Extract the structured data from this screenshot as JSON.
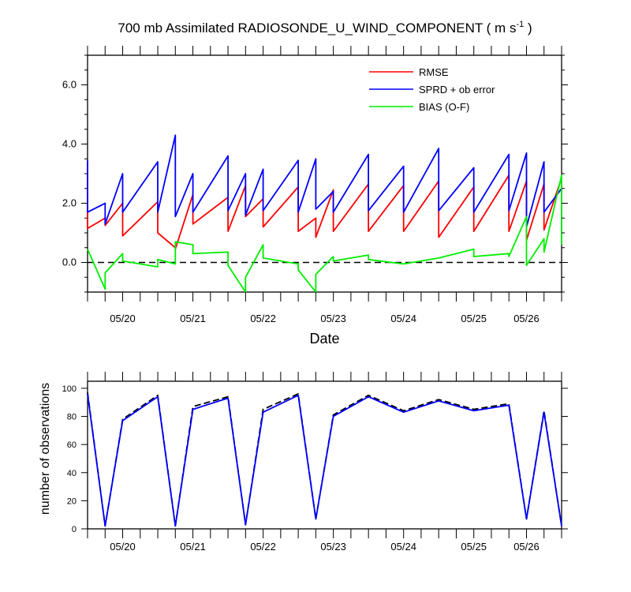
{
  "chart_data": [
    {
      "type": "line",
      "title": "700 mb Assimilated RADIOSONDE_U_WIND_COMPONENT ( m s",
      "title_superscript": "-1",
      "title_suffix": " )",
      "xlabel": "Date",
      "ylabel": "",
      "xlim": [
        0,
        6.5
      ],
      "ylim": [
        -1,
        7
      ],
      "yticks": [
        0.0,
        2.0,
        4.0,
        6.0
      ],
      "ytick_labels": [
        "0.0",
        "2.0",
        "4.0",
        "6.0"
      ],
      "xtick_positions": [
        0.5,
        1.5,
        2.5,
        3.5,
        4.5,
        5.5,
        6.25
      ],
      "xtick_labels": [
        "05/20",
        "05/21",
        "05/22",
        "05/23",
        "05/24",
        "05/25",
        "05/26"
      ],
      "reference_line": 0,
      "legend": [
        "RMSE",
        "SPRD + ob error",
        "BIAS (O-F)"
      ],
      "series": [
        {
          "name": "RMSE",
          "color": "#ff0000",
          "points": [
            [
              0,
              3.4
            ],
            [
              0,
              1.15
            ],
            [
              0.25,
              1.5
            ],
            [
              0.25,
              1.25
            ],
            [
              0.5,
              2.0
            ],
            [
              0.5,
              0.9
            ],
            [
              1.0,
              2.05
            ],
            [
              1.0,
              1.0
            ],
            [
              1.25,
              0.5
            ],
            [
              1.25,
              0.45
            ],
            [
              1.5,
              2.3
            ],
            [
              1.5,
              1.3
            ],
            [
              2.0,
              2.2
            ],
            [
              2.0,
              1.05
            ],
            [
              2.25,
              2.6
            ],
            [
              2.25,
              1.55
            ],
            [
              2.5,
              2.15
            ],
            [
              2.5,
              1.2
            ],
            [
              3.0,
              2.55
            ],
            [
              3.0,
              1.05
            ],
            [
              3.25,
              1.5
            ],
            [
              3.25,
              0.85
            ],
            [
              3.5,
              2.45
            ],
            [
              3.5,
              1.05
            ],
            [
              4.0,
              2.65
            ],
            [
              4.0,
              1.05
            ],
            [
              4.5,
              2.6
            ],
            [
              4.5,
              1.05
            ],
            [
              5.0,
              2.75
            ],
            [
              5.0,
              0.85
            ],
            [
              5.5,
              2.55
            ],
            [
              5.5,
              1.05
            ],
            [
              6.0,
              2.95
            ],
            [
              6.0,
              1.05
            ],
            [
              6.25,
              2.75
            ],
            [
              6.25,
              0.75
            ],
            [
              6.5,
              2.65
            ],
            [
              6.5,
              1.1
            ],
            [
              6.75,
              2.85
            ]
          ]
        },
        {
          "name": "SPRD + ob error",
          "color": "#0000ff",
          "points": [
            [
              0,
              3.45
            ],
            [
              0,
              1.7
            ],
            [
              0.25,
              2.0
            ],
            [
              0.25,
              1.3
            ],
            [
              0.5,
              3.0
            ],
            [
              0.5,
              1.7
            ],
            [
              1.0,
              3.4
            ],
            [
              1.0,
              1.7
            ],
            [
              1.25,
              4.3
            ],
            [
              1.25,
              1.55
            ],
            [
              1.5,
              3.0
            ],
            [
              1.5,
              1.7
            ],
            [
              2.0,
              3.6
            ],
            [
              2.0,
              1.75
            ],
            [
              2.25,
              3.0
            ],
            [
              2.25,
              1.6
            ],
            [
              2.5,
              3.15
            ],
            [
              2.5,
              1.75
            ],
            [
              3.0,
              3.45
            ],
            [
              3.0,
              1.7
            ],
            [
              3.25,
              3.5
            ],
            [
              3.25,
              1.8
            ],
            [
              3.5,
              2.4
            ],
            [
              3.5,
              1.7
            ],
            [
              4.0,
              3.65
            ],
            [
              4.0,
              1.75
            ],
            [
              4.5,
              3.25
            ],
            [
              4.5,
              1.7
            ],
            [
              5.0,
              3.85
            ],
            [
              5.0,
              1.75
            ],
            [
              5.5,
              3.2
            ],
            [
              5.5,
              1.7
            ],
            [
              6.0,
              3.65
            ],
            [
              6.0,
              1.75
            ],
            [
              6.25,
              3.7
            ],
            [
              6.25,
              1.2
            ],
            [
              6.5,
              3.4
            ],
            [
              6.5,
              1.7
            ],
            [
              6.75,
              2.5
            ]
          ]
        },
        {
          "name": "BIAS (O-F)",
          "color": "#00ee00",
          "points": [
            [
              0,
              0.45
            ],
            [
              0.25,
              -0.9
            ],
            [
              0.25,
              -0.35
            ],
            [
              0.5,
              0.3
            ],
            [
              0.5,
              0.05
            ],
            [
              1.0,
              -0.15
            ],
            [
              1.0,
              0.1
            ],
            [
              1.25,
              -0.05
            ],
            [
              1.25,
              0.7
            ],
            [
              1.5,
              0.6
            ],
            [
              1.5,
              0.3
            ],
            [
              2.0,
              0.35
            ],
            [
              2.0,
              -0.1
            ],
            [
              2.25,
              -1.0
            ],
            [
              2.25,
              -0.5
            ],
            [
              2.5,
              0.6
            ],
            [
              2.5,
              0.15
            ],
            [
              3.0,
              -0.05
            ],
            [
              3.0,
              -0.25
            ],
            [
              3.25,
              -1.0
            ],
            [
              3.25,
              -0.4
            ],
            [
              3.5,
              0.2
            ],
            [
              3.5,
              0.05
            ],
            [
              4.0,
              0.25
            ],
            [
              4.0,
              0.1
            ],
            [
              4.5,
              -0.05
            ],
            [
              5.0,
              0.15
            ],
            [
              5.0,
              0.15
            ],
            [
              5.5,
              0.45
            ],
            [
              5.5,
              0.2
            ],
            [
              6.0,
              0.3
            ],
            [
              6.0,
              0.2
            ],
            [
              6.25,
              1.55
            ],
            [
              6.25,
              -0.1
            ],
            [
              6.5,
              0.8
            ],
            [
              6.5,
              0.35
            ],
            [
              6.75,
              2.95
            ],
            [
              6.75,
              0.6
            ]
          ]
        }
      ]
    },
    {
      "type": "line",
      "title": "",
      "xlabel": "",
      "ylabel": "number of observations",
      "xlim": [
        0,
        6.5
      ],
      "ylim": [
        0,
        105
      ],
      "yticks": [
        0,
        20,
        40,
        60,
        80,
        100
      ],
      "ytick_labels": [
        "0",
        "20",
        "40",
        "60",
        "80",
        "100"
      ],
      "xtick_positions": [
        0.5,
        1.5,
        2.5,
        3.5,
        4.5,
        5.5,
        6.25
      ],
      "xtick_labels": [
        "05/20",
        "05/21",
        "05/22",
        "05/23",
        "05/24",
        "05/25",
        "05/26"
      ],
      "series": [
        {
          "name": "observations (dashed)",
          "color": "#000000",
          "dash": true,
          "points": [
            [
              0,
              97
            ],
            [
              0.25,
              2
            ],
            [
              0.5,
              78
            ],
            [
              1.0,
              95
            ],
            [
              1.25,
              2
            ],
            [
              1.5,
              87
            ],
            [
              2.0,
              94
            ],
            [
              2.25,
              3
            ],
            [
              2.5,
              85
            ],
            [
              3.0,
              96
            ],
            [
              3.25,
              7
            ],
            [
              3.5,
              81
            ],
            [
              4.0,
              95
            ],
            [
              4.5,
              84
            ],
            [
              5.0,
              92
            ],
            [
              5.5,
              85
            ],
            [
              6.0,
              89
            ],
            [
              6.25,
              7
            ],
            [
              6.5,
              84
            ],
            [
              6.75,
              2
            ]
          ]
        },
        {
          "name": "observations",
          "color": "#0000ff",
          "dash": false,
          "points": [
            [
              0,
              96
            ],
            [
              0.25,
              2
            ],
            [
              0.5,
              77
            ],
            [
              1.0,
              94
            ],
            [
              1.25,
              2
            ],
            [
              1.5,
              85
            ],
            [
              2.0,
              93
            ],
            [
              2.25,
              3
            ],
            [
              2.5,
              83
            ],
            [
              3.0,
              95
            ],
            [
              3.25,
              7
            ],
            [
              3.5,
              80
            ],
            [
              4.0,
              94
            ],
            [
              4.5,
              83
            ],
            [
              5.0,
              91
            ],
            [
              5.5,
              84
            ],
            [
              6.0,
              88
            ],
            [
              6.25,
              7
            ],
            [
              6.5,
              83
            ],
            [
              6.75,
              2
            ]
          ]
        }
      ]
    }
  ]
}
